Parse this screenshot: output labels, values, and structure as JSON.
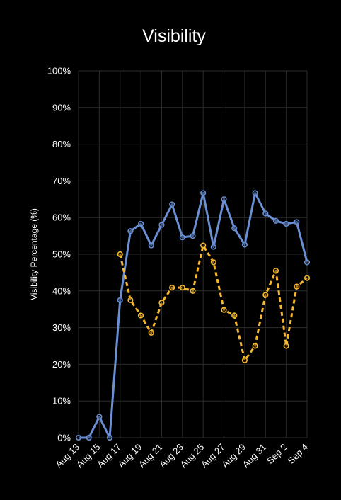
{
  "chart_data": {
    "type": "line",
    "title": "Visibility",
    "xlabel": "",
    "ylabel": "Visibility Percentage (%)",
    "ylim": [
      0,
      100
    ],
    "y_tick_labels": [
      "0%",
      "10%",
      "20%",
      "30%",
      "40%",
      "50%",
      "60%",
      "70%",
      "80%",
      "90%",
      "100%"
    ],
    "x_tick_labels": [
      "Aug 13",
      "Aug 15",
      "Aug 17",
      "Aug 19",
      "Aug 21",
      "Aug 23",
      "Aug 25",
      "Aug 27",
      "Aug 29",
      "Aug 31",
      "Sep 2",
      "Sep 4"
    ],
    "x": [
      "Aug 13",
      "Aug 14",
      "Aug 15",
      "Aug 16",
      "Aug 17",
      "Aug 18",
      "Aug 19",
      "Aug 20",
      "Aug 21",
      "Aug 22",
      "Aug 23",
      "Aug 24",
      "Aug 25",
      "Aug 26",
      "Aug 27",
      "Aug 28",
      "Aug 29",
      "Aug 30",
      "Aug 31",
      "Sep 1",
      "Sep 2",
      "Sep 3",
      "Sep 4"
    ],
    "grid": true,
    "legend": "none",
    "series": [
      {
        "color": "#6b8fd4",
        "style": "solid",
        "values": [
          0,
          0,
          5.7,
          0,
          37.5,
          56.3,
          58.3,
          52.4,
          58.0,
          63.6,
          54.6,
          55.0,
          66.7,
          52.0,
          65.0,
          57.1,
          52.6,
          66.7,
          61.1,
          59.1,
          58.3,
          58.8,
          47.8
        ]
      },
      {
        "color": "#f5b730",
        "style": "dashed",
        "values": [
          null,
          null,
          null,
          null,
          50.0,
          37.5,
          33.3,
          28.6,
          36.8,
          40.9,
          40.9,
          40.0,
          52.4,
          47.8,
          34.8,
          33.3,
          21.1,
          25.0,
          38.9,
          45.5,
          25.0,
          41.2,
          43.5
        ]
      }
    ]
  }
}
